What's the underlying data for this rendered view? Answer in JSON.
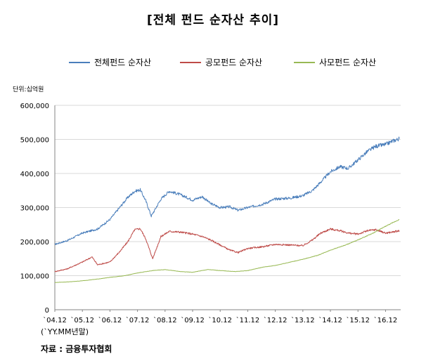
{
  "title": "[전체 펀드 순자산 추이]",
  "unit_label": "단위:십억원",
  "x_note": "(`YY.MM년말)",
  "source": "자료 : 금융투자협회",
  "colors": {
    "total": "#4a7ebb",
    "public": "#be4b48",
    "private": "#98b954"
  },
  "chart_data": {
    "type": "line",
    "title": "[전체 펀드 순자산 추이]",
    "ylabel": "단위:십억원",
    "xlabel": "(`YY.MM년말)",
    "ylim": [
      0,
      600000
    ],
    "yticks": [
      0,
      100000,
      200000,
      300000,
      400000,
      500000,
      600000
    ],
    "ytick_labels": [
      "0",
      "100,000",
      "200,000",
      "300,000",
      "400,000",
      "500,000",
      "600,000"
    ],
    "xticks": [
      "`04.12",
      "`05.12",
      "`06.12",
      "`07.12",
      "`08.12",
      "`09.12",
      "`10.12",
      "`11.12",
      "`12.12",
      "`13.12",
      "`14.12",
      "`15.12",
      "`16.12"
    ],
    "xlim": [
      2004.95,
      2017.5
    ],
    "grid": true,
    "legend_position": "top",
    "series": [
      {
        "name": "전체펀드 순자산",
        "color": "#4a7ebb",
        "x": [
          2004.95,
          2005.4,
          2005.95,
          2006.5,
          2006.95,
          2007.3,
          2007.6,
          2007.85,
          2008.05,
          2008.25,
          2008.45,
          2008.8,
          2009.1,
          2009.5,
          2009.95,
          2010.3,
          2010.6,
          2010.95,
          2011.3,
          2011.6,
          2011.95,
          2012.5,
          2012.95,
          2013.5,
          2013.95,
          2014.3,
          2014.6,
          2014.95,
          2015.3,
          2015.6,
          2015.95,
          2016.3,
          2016.6,
          2016.95,
          2017.2,
          2017.45
        ],
        "values": [
          192000,
          203000,
          225000,
          237000,
          265000,
          300000,
          330000,
          348000,
          352000,
          320000,
          275000,
          325000,
          348000,
          338000,
          322000,
          332000,
          312000,
          300000,
          302000,
          292000,
          300000,
          310000,
          325000,
          328000,
          335000,
          350000,
          375000,
          405000,
          420000,
          415000,
          440000,
          465000,
          480000,
          485000,
          495000,
          502000
        ]
      },
      {
        "name": "공모펀드 순자산",
        "color": "#be4b48",
        "x": [
          2004.95,
          2005.4,
          2005.95,
          2006.3,
          2006.5,
          2006.95,
          2007.3,
          2007.6,
          2007.85,
          2008.05,
          2008.25,
          2008.5,
          2008.8,
          2009.1,
          2009.5,
          2009.95,
          2010.3,
          2010.6,
          2010.95,
          2011.3,
          2011.6,
          2011.95,
          2012.5,
          2012.95,
          2013.5,
          2013.95,
          2014.3,
          2014.6,
          2014.95,
          2015.3,
          2015.6,
          2015.95,
          2016.3,
          2016.6,
          2016.95,
          2017.2,
          2017.45
        ],
        "values": [
          112000,
          120000,
          140000,
          155000,
          132000,
          140000,
          170000,
          200000,
          235000,
          238000,
          208000,
          150000,
          215000,
          230000,
          228000,
          222000,
          215000,
          205000,
          190000,
          175000,
          168000,
          180000,
          185000,
          192000,
          190000,
          188000,
          205000,
          225000,
          237000,
          232000,
          225000,
          222000,
          232000,
          235000,
          225000,
          228000,
          232000
        ]
      },
      {
        "name": "사모펀드 순자산",
        "color": "#98b954",
        "x": [
          2004.95,
          2005.5,
          2005.95,
          2006.5,
          2006.95,
          2007.5,
          2007.95,
          2008.5,
          2008.95,
          2009.5,
          2009.95,
          2010.5,
          2010.95,
          2011.5,
          2011.95,
          2012.5,
          2012.95,
          2013.5,
          2013.95,
          2014.5,
          2014.95,
          2015.5,
          2015.95,
          2016.5,
          2016.95,
          2017.45
        ],
        "values": [
          80000,
          82000,
          85000,
          90000,
          95000,
          100000,
          108000,
          115000,
          118000,
          112000,
          110000,
          118000,
          115000,
          112000,
          115000,
          125000,
          130000,
          140000,
          148000,
          160000,
          175000,
          190000,
          205000,
          225000,
          245000,
          265000
        ]
      }
    ]
  }
}
